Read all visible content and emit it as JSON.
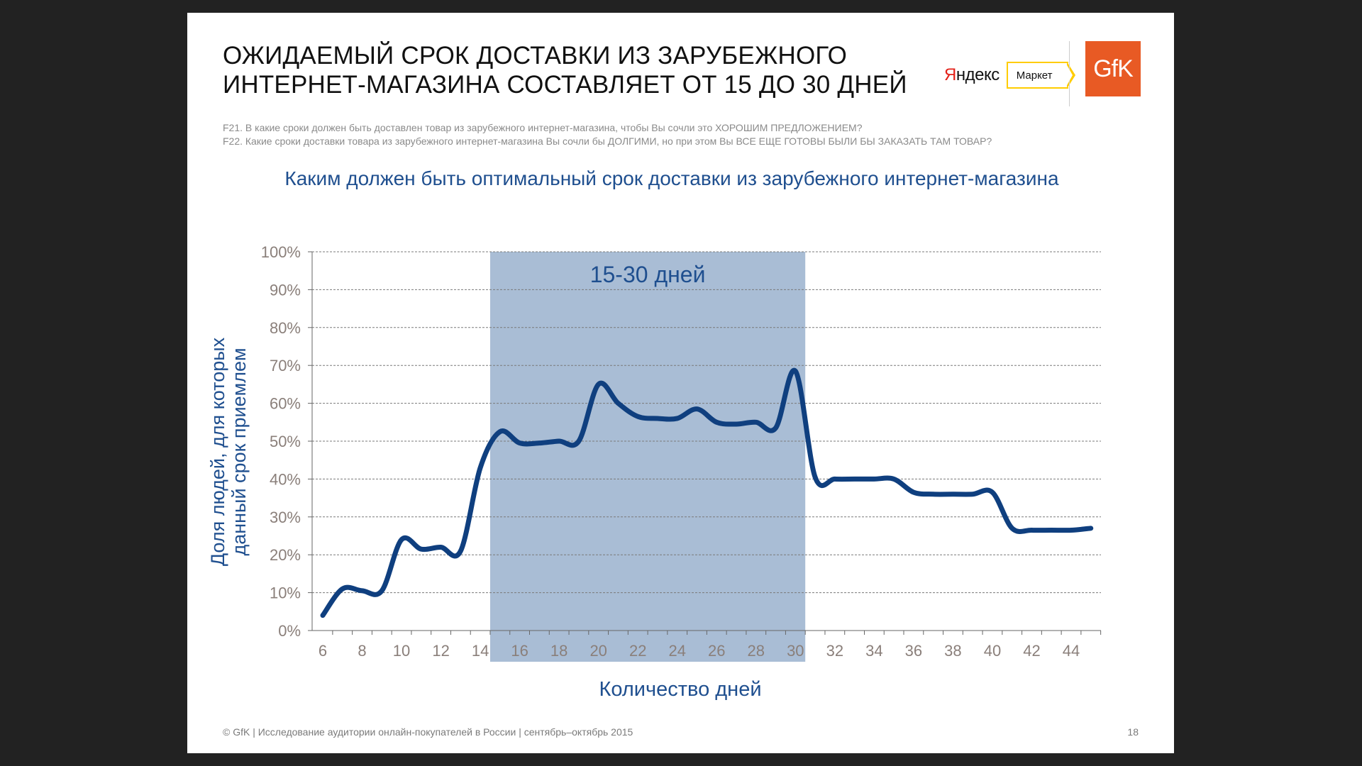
{
  "slide": {
    "title_line1": "ОЖИДАЕМЫЙ СРОК ДОСТАВКИ ИЗ ЗАРУБЕЖНОГО",
    "title_line2": "ИНТЕРНЕТ-МАГАЗИНА СОСТАВЛЯЕТ ОТ 15 ДО 30 ДНЕЙ",
    "question_f21": "F21. В какие сроки должен быть доставлен товар из зарубежного интернет-магазина, чтобы Вы сочли это ХОРОШИМ ПРЕДЛОЖЕНИЕМ?",
    "question_f22": "F22. Какие сроки доставки товара из зарубежного интернет-магазина Вы сочли бы ДОЛГИМИ, но при этом Вы ВСЕ ЕЩЕ ГОТОВЫ БЫЛИ БЫ ЗАКАЗАТЬ ТАМ ТОВАР?",
    "footer": "© GfK | Исследование аудитории онлайн-покупателей в России | сентябрь–октябрь 2015",
    "page_number": "18"
  },
  "logos": {
    "yandex_first_letter": "Я",
    "yandex_rest": "ндекс",
    "market_label": "Маркет",
    "gfk_label": "GfK",
    "gfk_color": "#e85a24"
  },
  "chart_data": {
    "type": "line",
    "title": "Каким должен быть оптимальный срок доставки из зарубежного интернет-магазина",
    "xlabel": "Количество дней",
    "ylabel_line1": "Доля людей, для которых",
    "ylabel_line2": "данный срок приемлем",
    "xlim": [
      6,
      45
    ],
    "ylim": [
      0,
      100
    ],
    "x_ticks": [
      6,
      8,
      10,
      12,
      14,
      16,
      18,
      20,
      22,
      24,
      26,
      28,
      30,
      32,
      34,
      36,
      38,
      40,
      42,
      44
    ],
    "y_ticks": [
      0,
      10,
      20,
      30,
      40,
      50,
      60,
      70,
      80,
      90,
      100
    ],
    "y_tick_labels": [
      "0%",
      "10%",
      "20%",
      "30%",
      "40%",
      "50%",
      "60%",
      "70%",
      "80%",
      "90%",
      "100%"
    ],
    "grid": true,
    "line_color": "#0f3f7f",
    "highlight": {
      "x_from": 14.5,
      "x_to": 30.5,
      "label": "15-30 дней",
      "color": "#a9bdd5"
    },
    "series": [
      {
        "x": [
          6,
          7,
          8,
          9,
          10,
          11,
          12,
          13,
          14,
          15,
          16,
          17,
          18,
          19,
          20,
          21,
          22,
          23,
          24,
          25,
          26,
          27,
          28,
          29,
          30,
          31,
          32,
          33,
          34,
          35,
          36,
          37,
          38,
          39,
          40,
          41,
          42,
          43,
          44,
          45
        ],
        "values": [
          4,
          11,
          10.5,
          10.5,
          24,
          21.5,
          22,
          21,
          43,
          52.5,
          49.5,
          49.5,
          50,
          50,
          65,
          60,
          56.5,
          56,
          56,
          58.5,
          55,
          54.5,
          55,
          53.5,
          68.5,
          40.5,
          40,
          40,
          40,
          40,
          36.5,
          36,
          36,
          36,
          36.5,
          27,
          26.5,
          26.5,
          26.5,
          27
        ]
      }
    ]
  }
}
